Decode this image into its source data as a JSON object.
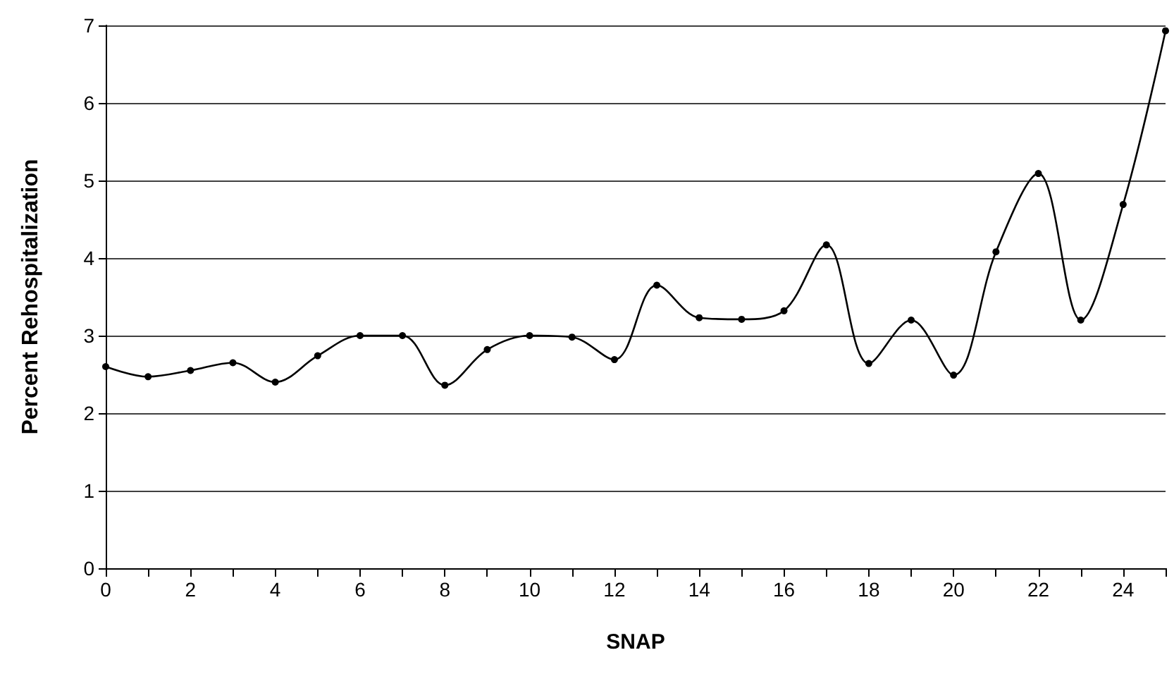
{
  "chart_data": {
    "type": "line",
    "xlabel": "SNAP",
    "ylabel": "Percent Rehospitalization",
    "x": [
      0,
      1,
      2,
      3,
      4,
      5,
      6,
      7,
      8,
      9,
      10,
      11,
      12,
      13,
      14,
      15,
      16,
      17,
      18,
      19,
      20,
      21,
      22,
      23,
      24,
      25
    ],
    "series": [
      {
        "color": "#000000",
        "values": [
          2.6,
          2.47,
          2.55,
          2.65,
          2.4,
          2.74,
          3.0,
          3.0,
          2.36,
          2.82,
          3.0,
          2.98,
          2.69,
          3.65,
          3.23,
          3.21,
          3.32,
          4.17,
          2.64,
          3.2,
          2.49,
          4.08,
          5.09,
          3.2,
          4.69,
          6.93
        ]
      }
    ],
    "xlim": [
      0,
      25
    ],
    "xticks": [
      0,
      {
        "value": 1,
        "label": null
      },
      2,
      {
        "value": 3,
        "label": null
      },
      4,
      {
        "value": 5,
        "label": null
      },
      6,
      {
        "value": 7,
        "label": null
      },
      8,
      {
        "value": 9,
        "label": null
      },
      10,
      {
        "value": 11,
        "label": null
      },
      12,
      {
        "value": 13,
        "label": null
      },
      14,
      {
        "value": 15,
        "label": null
      },
      16,
      {
        "value": 17,
        "label": null
      },
      18,
      {
        "value": 19,
        "label": null
      },
      20,
      {
        "value": 21,
        "label": null
      },
      22,
      {
        "value": 23,
        "label": null
      },
      24,
      {
        "value": 25,
        "label": null
      }
    ],
    "ylim": [
      0,
      7
    ],
    "yticks": [
      0,
      1,
      2,
      3,
      4,
      5,
      6,
      7
    ],
    "grid": "y",
    "marker": "circle",
    "line_style": "solid"
  }
}
